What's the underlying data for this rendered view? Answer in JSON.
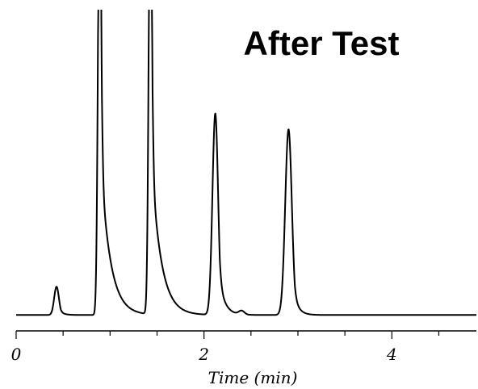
{
  "chart_data": {
    "type": "line",
    "title": "After Test",
    "xlabel": "Time (min)",
    "ylabel": "",
    "xlim": [
      0,
      4.9
    ],
    "ylim": [
      0,
      1.0
    ],
    "x_ticks": [
      0,
      2,
      4
    ],
    "x_tick_labels": [
      "0",
      "2",
      "4"
    ],
    "minor_tick_step": 0.5,
    "grid": false,
    "legend": "none",
    "baseline": 0.03,
    "series": [
      {
        "color": "#000000",
        "peaks": [
          {
            "time": 0.43,
            "height": 0.09,
            "width": 0.025,
            "tail": 0.04
          },
          {
            "time": 0.89,
            "height": 1.5,
            "width": 0.018,
            "tail": 0.1
          },
          {
            "time": 1.43,
            "height": 1.5,
            "width": 0.018,
            "tail": 0.1
          },
          {
            "time": 2.12,
            "height": 0.64,
            "width": 0.03,
            "tail": 0.06
          },
          {
            "time": 2.4,
            "height": 0.012,
            "width": 0.03,
            "tail": 0.03
          },
          {
            "time": 2.9,
            "height": 0.59,
            "width": 0.035,
            "tail": 0.05
          }
        ]
      }
    ]
  }
}
